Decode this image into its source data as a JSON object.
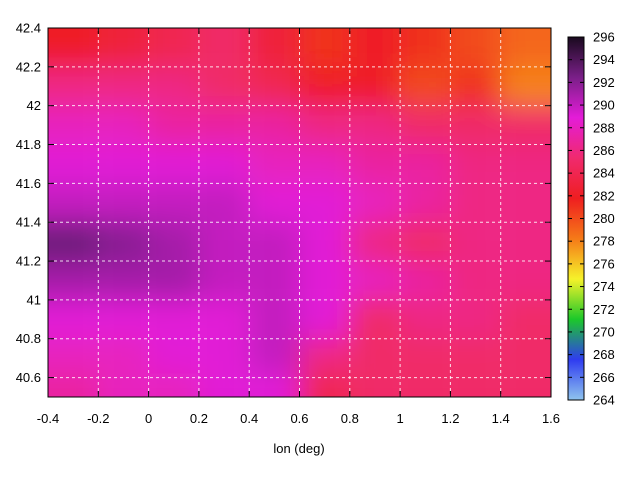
{
  "chart_data": {
    "type": "heatmap",
    "title": "",
    "xlabel": "lon (deg)",
    "ylabel": "",
    "xlim": [
      -0.4,
      1.6
    ],
    "ylim": [
      40.5,
      42.4
    ],
    "x_ticks": [
      "-0.4",
      "-0.2",
      "0",
      "0.2",
      "0.4",
      "0.6",
      "0.8",
      "1",
      "1.2",
      "1.4",
      "1.6"
    ],
    "y_ticks": [
      "40.6",
      "40.8",
      "41",
      "41.2",
      "41.4",
      "41.6",
      "41.8",
      "42",
      "42.2",
      "42.4"
    ],
    "grid": true,
    "colorbar": {
      "min": 264,
      "max": 296,
      "ticks": [
        "264",
        "266",
        "268",
        "270",
        "272",
        "274",
        "276",
        "278",
        "280",
        "282",
        "284",
        "286",
        "288",
        "290",
        "292",
        "294",
        "296"
      ],
      "colors": [
        "#8fc4ee",
        "#2f3cf0",
        "#1cc82a",
        "#f6f22a",
        "#f57a18",
        "#ef1e20",
        "#f02a6e",
        "#e41cd8",
        "#7a1f88",
        "#1a0a1f"
      ]
    },
    "x_values": [
      -0.3,
      -0.1,
      0.1,
      0.3,
      0.5,
      0.7,
      0.9,
      1.1,
      1.3,
      1.5
    ],
    "y_values": [
      42.3,
      42.1,
      41.9,
      41.7,
      41.5,
      41.3,
      41.1,
      40.9,
      40.7,
      40.55
    ],
    "z": [
      [
        282,
        283,
        284,
        285,
        283,
        281,
        282,
        281,
        280,
        279
      ],
      [
        286,
        286,
        286,
        285,
        284,
        282,
        282,
        280,
        281,
        278
      ],
      [
        288,
        288,
        287,
        287,
        287,
        286,
        286,
        285,
        285,
        285
      ],
      [
        289,
        289,
        289,
        289,
        288,
        288,
        287,
        287,
        286,
        286
      ],
      [
        290,
        290,
        290,
        290,
        289,
        289,
        288,
        287,
        286,
        286
      ],
      [
        293,
        292,
        291,
        290,
        290,
        289,
        286,
        285,
        286,
        286
      ],
      [
        291,
        291,
        291,
        290,
        290,
        289,
        288,
        287,
        286,
        286
      ],
      [
        289,
        289,
        289,
        289,
        290,
        289,
        285,
        286,
        286,
        285
      ],
      [
        288,
        288,
        289,
        289,
        290,
        286,
        285,
        285,
        285,
        285
      ],
      [
        287,
        288,
        288,
        289,
        289,
        284,
        285,
        285,
        285,
        285
      ]
    ]
  }
}
